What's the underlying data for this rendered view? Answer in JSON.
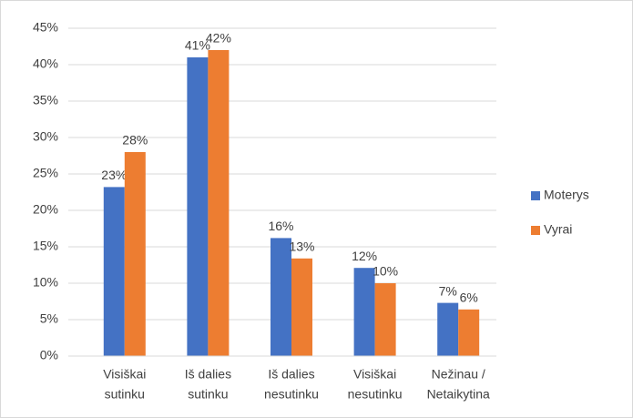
{
  "chart_data": {
    "type": "bar",
    "categories": [
      [
        "Visiškai",
        "sutinku"
      ],
      [
        "Iš dalies",
        "sutinku"
      ],
      [
        "Iš dalies",
        "nesutinku"
      ],
      [
        "Visiškai",
        "nesutinku"
      ],
      [
        "Nežinau /",
        "Netaikytina"
      ]
    ],
    "series": [
      {
        "name": "Moterys",
        "color": "#4472c4",
        "values": [
          23.2,
          41,
          16.2,
          12.1,
          7.3
        ],
        "value_labels": [
          "23%",
          "41%",
          "16%",
          "12%",
          "7%"
        ]
      },
      {
        "name": "Vyrai",
        "color": "#ed7d31",
        "values": [
          28,
          42,
          13.4,
          10,
          6.4
        ],
        "value_labels": [
          "28%",
          "42%",
          "13%",
          "10%",
          "6%"
        ]
      }
    ],
    "ylim": [
      0,
      45
    ],
    "yticks": [
      {
        "value": 0,
        "label": "0%"
      },
      {
        "value": 5,
        "label": "5%"
      },
      {
        "value": 10,
        "label": "10%"
      },
      {
        "value": 15,
        "label": "15%"
      },
      {
        "value": 20,
        "label": "20%"
      },
      {
        "value": 25,
        "label": "25%"
      },
      {
        "value": 30,
        "label": "30%"
      },
      {
        "value": 35,
        "label": "35%"
      },
      {
        "value": 40,
        "label": "40%"
      },
      {
        "value": 45,
        "label": "45%"
      }
    ],
    "grid": true,
    "legend": "right"
  }
}
